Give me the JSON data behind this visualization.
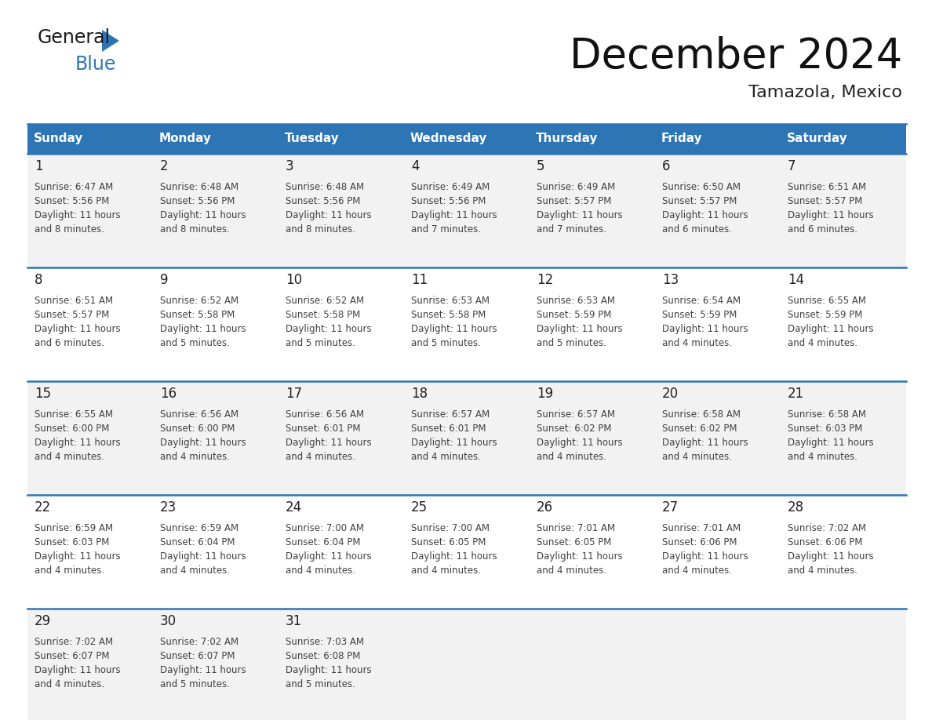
{
  "title": "December 2024",
  "subtitle": "Tamazola, Mexico",
  "days_of_week": [
    "Sunday",
    "Monday",
    "Tuesday",
    "Wednesday",
    "Thursday",
    "Friday",
    "Saturday"
  ],
  "header_bg": "#2E75B6",
  "header_text": "#FFFFFF",
  "cell_bg_odd": "#F2F2F2",
  "cell_bg_even": "#FFFFFF",
  "cell_text": "#404040",
  "day_num_color": "#222222",
  "line_color": "#2E75B6",
  "calendar": [
    [
      {
        "day": 1,
        "sunrise": "6:47 AM",
        "sunset": "5:56 PM",
        "daylight": "11 hours and 8 minutes."
      },
      {
        "day": 2,
        "sunrise": "6:48 AM",
        "sunset": "5:56 PM",
        "daylight": "11 hours and 8 minutes."
      },
      {
        "day": 3,
        "sunrise": "6:48 AM",
        "sunset": "5:56 PM",
        "daylight": "11 hours and 8 minutes."
      },
      {
        "day": 4,
        "sunrise": "6:49 AM",
        "sunset": "5:56 PM",
        "daylight": "11 hours and 7 minutes."
      },
      {
        "day": 5,
        "sunrise": "6:49 AM",
        "sunset": "5:57 PM",
        "daylight": "11 hours and 7 minutes."
      },
      {
        "day": 6,
        "sunrise": "6:50 AM",
        "sunset": "5:57 PM",
        "daylight": "11 hours and 6 minutes."
      },
      {
        "day": 7,
        "sunrise": "6:51 AM",
        "sunset": "5:57 PM",
        "daylight": "11 hours and 6 minutes."
      }
    ],
    [
      {
        "day": 8,
        "sunrise": "6:51 AM",
        "sunset": "5:57 PM",
        "daylight": "11 hours and 6 minutes."
      },
      {
        "day": 9,
        "sunrise": "6:52 AM",
        "sunset": "5:58 PM",
        "daylight": "11 hours and 5 minutes."
      },
      {
        "day": 10,
        "sunrise": "6:52 AM",
        "sunset": "5:58 PM",
        "daylight": "11 hours and 5 minutes."
      },
      {
        "day": 11,
        "sunrise": "6:53 AM",
        "sunset": "5:58 PM",
        "daylight": "11 hours and 5 minutes."
      },
      {
        "day": 12,
        "sunrise": "6:53 AM",
        "sunset": "5:59 PM",
        "daylight": "11 hours and 5 minutes."
      },
      {
        "day": 13,
        "sunrise": "6:54 AM",
        "sunset": "5:59 PM",
        "daylight": "11 hours and 4 minutes."
      },
      {
        "day": 14,
        "sunrise": "6:55 AM",
        "sunset": "5:59 PM",
        "daylight": "11 hours and 4 minutes."
      }
    ],
    [
      {
        "day": 15,
        "sunrise": "6:55 AM",
        "sunset": "6:00 PM",
        "daylight": "11 hours and 4 minutes."
      },
      {
        "day": 16,
        "sunrise": "6:56 AM",
        "sunset": "6:00 PM",
        "daylight": "11 hours and 4 minutes."
      },
      {
        "day": 17,
        "sunrise": "6:56 AM",
        "sunset": "6:01 PM",
        "daylight": "11 hours and 4 minutes."
      },
      {
        "day": 18,
        "sunrise": "6:57 AM",
        "sunset": "6:01 PM",
        "daylight": "11 hours and 4 minutes."
      },
      {
        "day": 19,
        "sunrise": "6:57 AM",
        "sunset": "6:02 PM",
        "daylight": "11 hours and 4 minutes."
      },
      {
        "day": 20,
        "sunrise": "6:58 AM",
        "sunset": "6:02 PM",
        "daylight": "11 hours and 4 minutes."
      },
      {
        "day": 21,
        "sunrise": "6:58 AM",
        "sunset": "6:03 PM",
        "daylight": "11 hours and 4 minutes."
      }
    ],
    [
      {
        "day": 22,
        "sunrise": "6:59 AM",
        "sunset": "6:03 PM",
        "daylight": "11 hours and 4 minutes."
      },
      {
        "day": 23,
        "sunrise": "6:59 AM",
        "sunset": "6:04 PM",
        "daylight": "11 hours and 4 minutes."
      },
      {
        "day": 24,
        "sunrise": "7:00 AM",
        "sunset": "6:04 PM",
        "daylight": "11 hours and 4 minutes."
      },
      {
        "day": 25,
        "sunrise": "7:00 AM",
        "sunset": "6:05 PM",
        "daylight": "11 hours and 4 minutes."
      },
      {
        "day": 26,
        "sunrise": "7:01 AM",
        "sunset": "6:05 PM",
        "daylight": "11 hours and 4 minutes."
      },
      {
        "day": 27,
        "sunrise": "7:01 AM",
        "sunset": "6:06 PM",
        "daylight": "11 hours and 4 minutes."
      },
      {
        "day": 28,
        "sunrise": "7:02 AM",
        "sunset": "6:06 PM",
        "daylight": "11 hours and 4 minutes."
      }
    ],
    [
      {
        "day": 29,
        "sunrise": "7:02 AM",
        "sunset": "6:07 PM",
        "daylight": "11 hours and 4 minutes."
      },
      {
        "day": 30,
        "sunrise": "7:02 AM",
        "sunset": "6:07 PM",
        "daylight": "11 hours and 5 minutes."
      },
      {
        "day": 31,
        "sunrise": "7:03 AM",
        "sunset": "6:08 PM",
        "daylight": "11 hours and 5 minutes."
      },
      null,
      null,
      null,
      null
    ]
  ],
  "logo_text1": "General",
  "logo_text2": "Blue",
  "logo_triangle_color": "#2E75B6",
  "title_fontsize": 38,
  "subtitle_fontsize": 16,
  "header_fontsize": 11,
  "day_num_fontsize": 12,
  "cell_fontsize": 8.5
}
